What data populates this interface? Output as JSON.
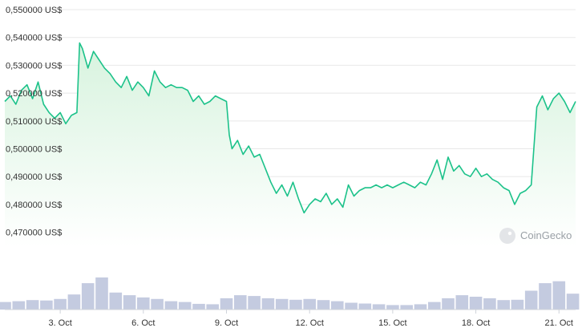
{
  "watermark": {
    "text": "CoinGecko",
    "icon": "coingecko-logo-icon"
  },
  "colors": {
    "line": "#1cc28a",
    "fill_top": "#d7f3de",
    "fill_bottom": "#ffffff",
    "grid": "#e8e8e8",
    "volume": "#c4cbe0"
  },
  "chart_data": {
    "type": "area",
    "title": "",
    "xlabel": "",
    "ylabel": "",
    "x_range": [
      1.0,
      21.6
    ],
    "ylim": [
      0.465,
      0.55
    ],
    "y_ticks": [
      {
        "value": 0.55,
        "label": "0,550000 US$"
      },
      {
        "value": 0.54,
        "label": "0,540000 US$"
      },
      {
        "value": 0.53,
        "label": "0,530000 US$"
      },
      {
        "value": 0.52,
        "label": "0,520000 US$"
      },
      {
        "value": 0.51,
        "label": "0,510000 US$"
      },
      {
        "value": 0.5,
        "label": "0,500000 US$"
      },
      {
        "value": 0.49,
        "label": "0,490000 US$"
      },
      {
        "value": 0.48,
        "label": "0,480000 US$"
      },
      {
        "value": 0.47,
        "label": "0,470000 US$"
      }
    ],
    "x_ticks": [
      {
        "value": 3,
        "label": "3. Oct"
      },
      {
        "value": 6,
        "label": "6. Oct"
      },
      {
        "value": 9,
        "label": "9. Oct"
      },
      {
        "value": 12,
        "label": "12. Oct"
      },
      {
        "value": 15,
        "label": "15. Oct"
      },
      {
        "value": 18,
        "label": "18. Oct"
      },
      {
        "value": 21,
        "label": "21. Oct"
      }
    ],
    "grid": true,
    "series": [
      {
        "x": [
          1.0,
          1.2,
          1.4,
          1.6,
          1.8,
          2.0,
          2.2,
          2.4,
          2.6,
          2.8,
          3.0,
          3.2,
          3.4,
          3.6,
          3.7,
          3.8,
          4.0,
          4.2,
          4.4,
          4.6,
          4.8,
          5.0,
          5.2,
          5.4,
          5.6,
          5.8,
          6.0,
          6.2,
          6.4,
          6.6,
          6.8,
          7.0,
          7.2,
          7.4,
          7.6,
          7.8,
          8.0,
          8.2,
          8.4,
          8.6,
          8.8,
          9.0,
          9.1,
          9.2,
          9.4,
          9.6,
          9.8,
          10.0,
          10.2,
          10.4,
          10.6,
          10.8,
          11.0,
          11.2,
          11.4,
          11.6,
          11.8,
          12.0,
          12.2,
          12.4,
          12.6,
          12.8,
          13.0,
          13.2,
          13.4,
          13.6,
          13.8,
          14.0,
          14.2,
          14.4,
          14.6,
          14.8,
          15.0,
          15.2,
          15.4,
          15.6,
          15.8,
          16.0,
          16.2,
          16.4,
          16.6,
          16.8,
          17.0,
          17.2,
          17.4,
          17.6,
          17.8,
          18.0,
          18.2,
          18.4,
          18.6,
          18.8,
          19.0,
          19.2,
          19.4,
          19.6,
          19.8,
          20.0,
          20.2,
          20.4,
          20.6,
          20.8,
          21.0,
          21.2,
          21.4,
          21.6
        ],
        "values": [
          0.517,
          0.519,
          0.516,
          0.521,
          0.523,
          0.518,
          0.524,
          0.516,
          0.513,
          0.511,
          0.513,
          0.509,
          0.512,
          0.513,
          0.538,
          0.536,
          0.529,
          0.535,
          0.532,
          0.529,
          0.527,
          0.524,
          0.522,
          0.526,
          0.521,
          0.524,
          0.522,
          0.519,
          0.528,
          0.524,
          0.522,
          0.523,
          0.522,
          0.522,
          0.521,
          0.517,
          0.519,
          0.516,
          0.517,
          0.519,
          0.518,
          0.517,
          0.505,
          0.5,
          0.503,
          0.498,
          0.501,
          0.497,
          0.498,
          0.493,
          0.488,
          0.484,
          0.487,
          0.483,
          0.488,
          0.482,
          0.477,
          0.48,
          0.482,
          0.481,
          0.484,
          0.48,
          0.482,
          0.479,
          0.487,
          0.483,
          0.485,
          0.486,
          0.486,
          0.487,
          0.486,
          0.487,
          0.486,
          0.487,
          0.488,
          0.487,
          0.486,
          0.488,
          0.487,
          0.491,
          0.496,
          0.489,
          0.497,
          0.492,
          0.494,
          0.491,
          0.49,
          0.493,
          0.49,
          0.491,
          0.489,
          0.488,
          0.486,
          0.485,
          0.48,
          0.484,
          0.485,
          0.487,
          0.515,
          0.519,
          0.514,
          0.518,
          0.52,
          0.517,
          0.513,
          0.517
        ]
      }
    ],
    "volume": {
      "x": [
        1.0,
        1.5,
        2.0,
        2.5,
        3.0,
        3.5,
        4.0,
        4.5,
        5.0,
        5.5,
        6.0,
        6.5,
        7.0,
        7.5,
        8.0,
        8.5,
        9.0,
        9.5,
        10.0,
        10.5,
        11.0,
        11.5,
        12.0,
        12.5,
        13.0,
        13.5,
        14.0,
        14.5,
        15.0,
        15.5,
        16.0,
        16.5,
        17.0,
        17.5,
        18.0,
        18.5,
        19.0,
        19.5,
        20.0,
        20.5,
        21.0,
        21.5
      ],
      "values": [
        20,
        22,
        25,
        24,
        28,
        40,
        70,
        85,
        45,
        38,
        32,
        28,
        22,
        20,
        15,
        14,
        30,
        38,
        36,
        30,
        28,
        26,
        28,
        25,
        22,
        18,
        16,
        14,
        12,
        12,
        14,
        20,
        30,
        38,
        34,
        30,
        25,
        26,
        50,
        70,
        75,
        42
      ]
    }
  }
}
